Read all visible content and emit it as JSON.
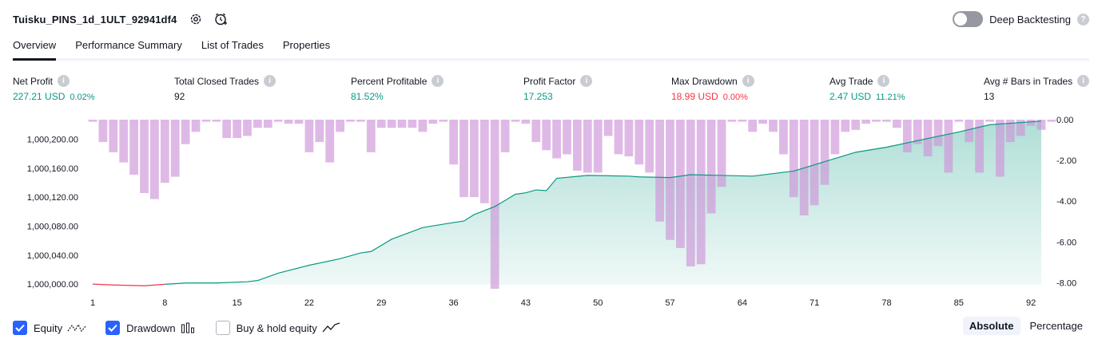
{
  "header": {
    "title": "Tuisku_PINS_1d_1ULT_92941df4",
    "deep_backtesting_label": "Deep Backtesting"
  },
  "tabs": [
    {
      "label": "Overview",
      "active": true
    },
    {
      "label": "Performance Summary",
      "active": false
    },
    {
      "label": "List of Trades",
      "active": false
    },
    {
      "label": "Properties",
      "active": false
    }
  ],
  "metrics": [
    {
      "label": "Net Profit",
      "value": "227.21 USD",
      "pct": "0.02%",
      "tone": "green"
    },
    {
      "label": "Total Closed Trades",
      "value": "92",
      "pct": "",
      "tone": "neutral"
    },
    {
      "label": "Percent Profitable",
      "value": "81.52%",
      "pct": "",
      "tone": "green"
    },
    {
      "label": "Profit Factor",
      "value": "17.253",
      "pct": "",
      "tone": "green"
    },
    {
      "label": "Max Drawdown",
      "value": "18.99 USD",
      "pct": "0.00%",
      "tone": "red"
    },
    {
      "label": "Avg Trade",
      "value": "2.47 USD",
      "pct": "11.21%",
      "tone": "green"
    },
    {
      "label": "Avg # Bars in Trades",
      "value": "13",
      "pct": "",
      "tone": "neutral"
    }
  ],
  "colors": {
    "profit": "#089981",
    "loss": "#f23645",
    "drawdown": "#ce93d8",
    "accent": "#2962ff"
  },
  "chart_data": {
    "type": "line",
    "x_label": "",
    "x_ticks": [
      1,
      8,
      15,
      22,
      29,
      36,
      43,
      50,
      57,
      64,
      71,
      78,
      85,
      92
    ],
    "left_axis": {
      "ticks": [
        "1,000,000.00",
        "1,000,040.00",
        "1,000,080.00",
        "1,000,120.00",
        "1,000,160.00",
        "1,000,200.00"
      ],
      "ylim": [
        999999,
        1000227
      ]
    },
    "right_axis": {
      "ticks": [
        "0.00",
        "-2.00",
        "-4.00",
        "-6.00",
        "-8.00"
      ],
      "ylim": [
        -8.3,
        0
      ]
    },
    "series": [
      {
        "name": "Equity",
        "x": [
          1,
          3,
          6,
          8,
          10,
          13,
          16,
          17,
          19,
          22,
          25,
          27,
          28,
          30,
          33,
          36,
          37,
          38,
          40,
          42,
          43,
          44,
          45,
          46,
          49,
          53,
          54,
          57,
          59,
          65,
          69,
          75,
          78,
          85,
          88,
          93
        ],
        "values": [
          1000000.0,
          999998.7,
          999997.6,
          999999.7,
          1000001.5,
          1000001.5,
          1000003.2,
          1000004.9,
          1000015,
          1000026,
          1000035,
          1000043,
          1000045,
          1000062,
          1000078,
          1000085,
          1000087,
          1000096,
          1000107,
          1000124,
          1000126,
          1000130,
          1000129,
          1000146,
          1000150,
          1000149,
          1000148,
          1000147,
          1000151,
          1000149,
          1000156,
          1000182,
          1000189,
          1000210,
          1000220,
          1000225
        ]
      },
      {
        "name": "Drawdown",
        "values": [
          -0.1,
          -1.1,
          -1.6,
          -2.1,
          -2.7,
          -3.6,
          -3.9,
          -3.1,
          -2.8,
          -1.2,
          -0.6,
          -0.1,
          -0.1,
          -0.9,
          -0.9,
          -0.8,
          -0.4,
          -0.4,
          -0.1,
          -0.2,
          -0.2,
          -1.6,
          -1.1,
          -2.1,
          -0.6,
          -0.1,
          -0.1,
          -1.6,
          -0.4,
          -0.4,
          -0.4,
          -0.4,
          -0.6,
          -0.2,
          -0.1,
          -2.2,
          -3.8,
          -3.8,
          -4.1,
          -8.3,
          -1.6,
          -0.1,
          -0.2,
          -1.1,
          -1.5,
          -1.9,
          -1.7,
          -2.5,
          -2.6,
          -2.6,
          -0.8,
          -1.7,
          -1.8,
          -2.2,
          -2.6,
          -5.0,
          -5.9,
          -6.3,
          -7.2,
          -7.1,
          -4.6,
          -3.3,
          -0.1,
          -0.1,
          -0.6,
          -0.2,
          -0.6,
          -1.7,
          -3.8,
          -4.7,
          -4.2,
          -3.2,
          -1.7,
          -0.6,
          -0.5,
          -0.2,
          -0.1,
          -0.1,
          -0.4,
          -1.6,
          -1.2,
          -1.8,
          -1.3,
          -2.6,
          -0.1,
          -1.1,
          -2.6,
          -0.1,
          -2.8,
          -1.1,
          -0.8,
          -0.3,
          -0.5,
          -0.1
        ]
      }
    ]
  },
  "legend": [
    {
      "label": "Equity",
      "checked": true,
      "icon": "equity-line-icon"
    },
    {
      "label": "Drawdown",
      "checked": true,
      "icon": "drawdown-bars-icon"
    },
    {
      "label": "Buy & hold equity",
      "checked": false,
      "icon": "buy-hold-line-icon"
    }
  ],
  "modes": [
    {
      "label": "Absolute",
      "active": true
    },
    {
      "label": "Percentage",
      "active": false
    }
  ]
}
